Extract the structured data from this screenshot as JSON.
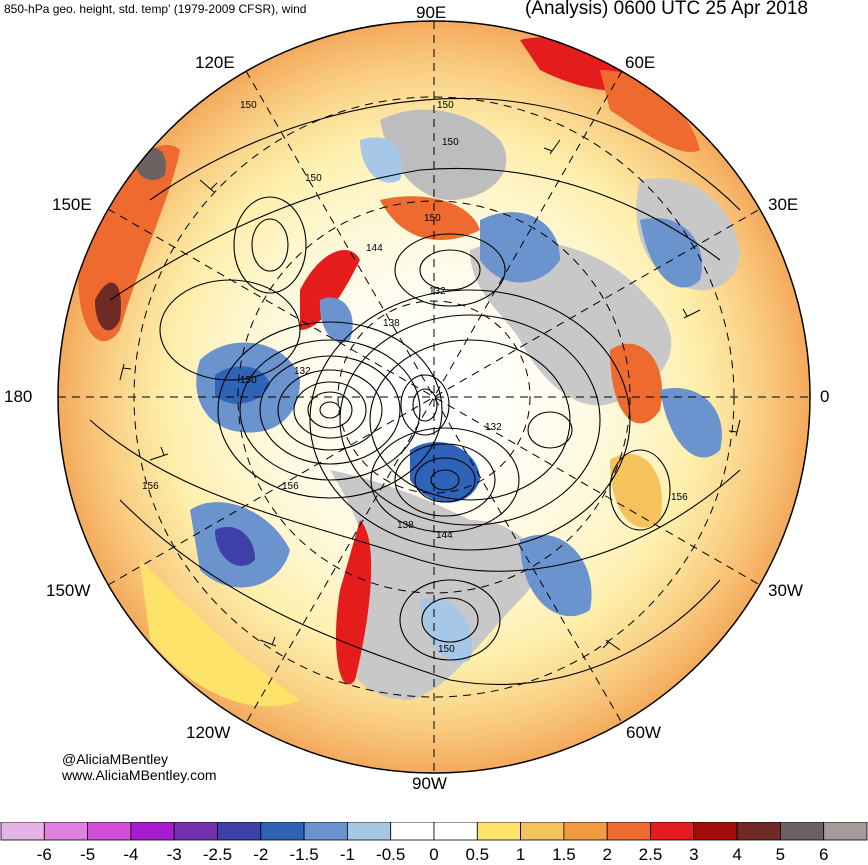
{
  "header": {
    "left_title": "850-hPa geo. height, std. temp' (1979-2009 CFSR), wind",
    "right_title": "(Analysis) 0600 UTC 25 Apr 2018"
  },
  "credits": {
    "handle": "@AliciaMBentley",
    "site": "www.AliciaMBentley.com"
  },
  "map": {
    "projection": "north polar stereographic",
    "longitude_labels": [
      "90E",
      "60E",
      "30E",
      "0",
      "30W",
      "60W",
      "90W",
      "120W",
      "150W",
      "180",
      "150E",
      "120E"
    ],
    "contour_labels": [
      "150",
      "150",
      "150",
      "150",
      "150",
      "144",
      "132",
      "138",
      "132",
      "150",
      "132",
      "156",
      "156",
      "156",
      "138",
      "144",
      "150"
    ]
  },
  "colorbar": {
    "tick_labels": [
      "-6",
      "-5",
      "-4",
      "-3",
      "-2.5",
      "-2",
      "-1.5",
      "-1",
      "-0.5",
      "0",
      "0.5",
      "1",
      "1.5",
      "2",
      "2.5",
      "3",
      "4",
      "5",
      "6"
    ],
    "colors": [
      "#e6b3e6",
      "#e080e0",
      "#d14fd6",
      "#a71bd1",
      "#7030b0",
      "#3f3fa8",
      "#2f63b8",
      "#6b93cd",
      "#a6c8e6",
      "#ffffff",
      "#ffffff",
      "#fde36a",
      "#f5c25c",
      "#f29a3f",
      "#ef6a2f",
      "#e51c1c",
      "#a50c0c",
      "#6e2a24",
      "#6c6161",
      "#a89a9a"
    ]
  }
}
